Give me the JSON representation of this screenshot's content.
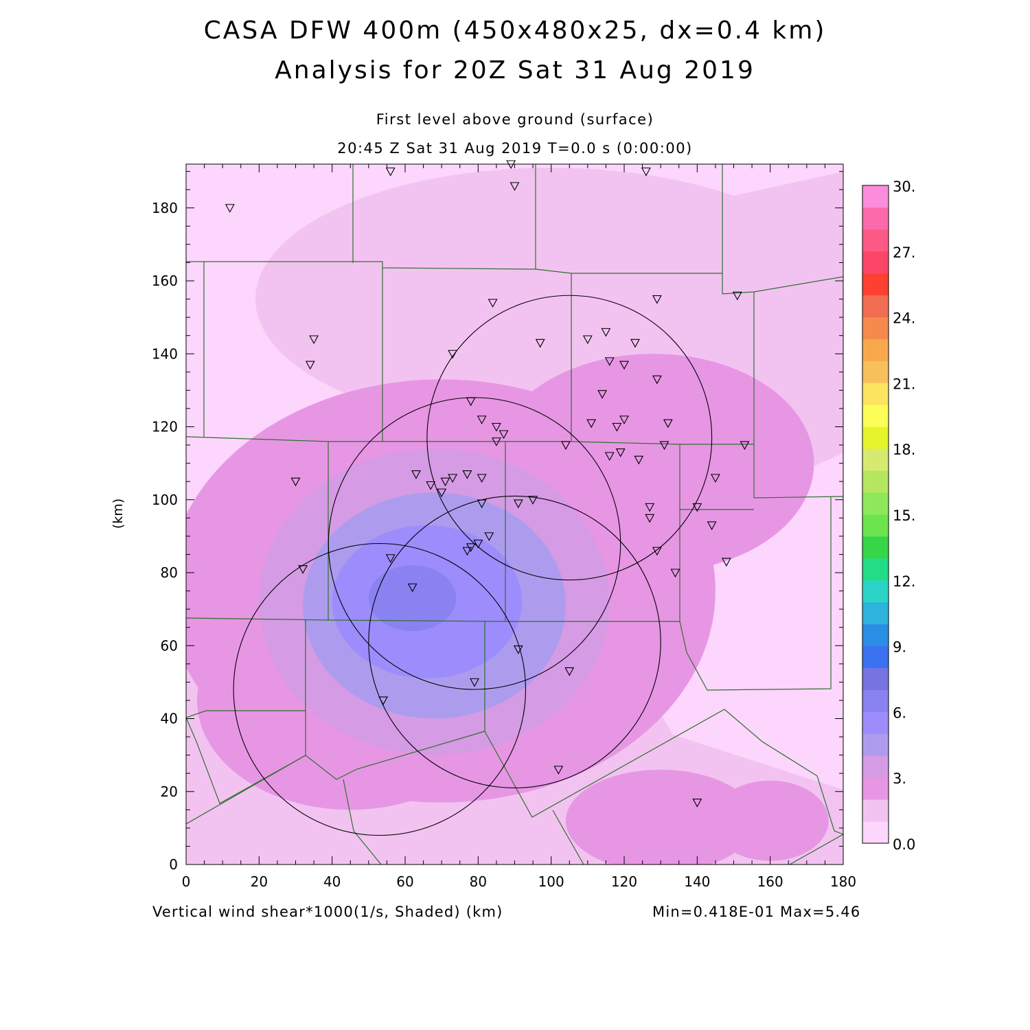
{
  "header": {
    "title_line1": "CASA DFW 400m (450x480x25, dx=0.4 km)",
    "title_line2": "Analysis for 20Z Sat 31 Aug 2019",
    "subtitle_line1": "First level above ground (surface)",
    "subtitle_line2": "20:45 Z Sat 31 Aug 2019    T=0.0 s (0:00:00)"
  },
  "footer": {
    "field_label": "Vertical wind shear*1000(1/s, Shaded)  (km)",
    "minmax": "Min=0.418E-01 Max=5.46"
  },
  "colors": {
    "bg": "#ffffff",
    "levels": [
      "#fcd6fc",
      "#f2c3f0",
      "#e796e4",
      "#d59be4",
      "#ad9cee",
      "#9d8cfc",
      "#8a82f0",
      "#7774e2",
      "#3b72f2",
      "#2a8ee4",
      "#2cb4dc",
      "#2cd4c8",
      "#22dc86",
      "#36d648",
      "#6ce44e",
      "#8fe85a",
      "#b5e660",
      "#d6ea72",
      "#e6f42c",
      "#fdfd58",
      "#fce460",
      "#f8c05a",
      "#f8a84c",
      "#f58a4c",
      "#f26e52",
      "#fe4030",
      "#fc4668",
      "#fc5a84",
      "#fc6aac",
      "#fc8cdc"
    ],
    "boundary": "#2f6e2f",
    "ring": "#000000"
  },
  "chart_data": {
    "type": "heatmap",
    "field": "Vertical wind shear*1000 (1/s)",
    "xlabel": "",
    "ylabel": "(km)",
    "xlim": [
      0,
      180
    ],
    "ylim": [
      0,
      192
    ],
    "x_ticks": [
      0,
      20,
      40,
      60,
      80,
      100,
      120,
      140,
      160,
      180
    ],
    "y_ticks": [
      0,
      20,
      40,
      60,
      80,
      100,
      120,
      140,
      160,
      180
    ],
    "colorbar": {
      "min": 0.0,
      "max": 30.0,
      "interval": 1.0,
      "labels": [
        "0.0",
        "3.",
        "6.",
        "9.",
        "12.",
        "15.",
        "18.",
        "21.",
        "24.",
        "27.",
        "30."
      ]
    },
    "data_min": 0.0418,
    "data_max": 5.46,
    "shading_blobs": [
      {
        "x": 70,
        "y": 75,
        "rx": 75,
        "ry": 58,
        "level": 2
      },
      {
        "x": 45,
        "y": 45,
        "rx": 42,
        "ry": 30,
        "level": 2
      },
      {
        "x": 128,
        "y": 110,
        "rx": 44,
        "ry": 30,
        "level": 2
      },
      {
        "x": 130,
        "y": 12,
        "rx": 26,
        "ry": 14,
        "level": 2
      },
      {
        "x": 160,
        "y": 12,
        "rx": 16,
        "ry": 11,
        "level": 2
      },
      {
        "x": 68,
        "y": 72,
        "rx": 48,
        "ry": 42,
        "level": 3
      },
      {
        "x": 68,
        "y": 71,
        "rx": 36,
        "ry": 31,
        "level": 4
      },
      {
        "x": 66,
        "y": 72,
        "rx": 26,
        "ry": 21,
        "level": 5
      },
      {
        "x": 62,
        "y": 73,
        "rx": 12,
        "ry": 9,
        "level": 6
      }
    ],
    "radar_rings": [
      {
        "x": 105,
        "y": 117,
        "r": 39
      },
      {
        "x": 79,
        "y": 88,
        "r": 40
      },
      {
        "x": 90,
        "y": 61,
        "r": 40
      },
      {
        "x": 53,
        "y": 48,
        "r": 40
      }
    ],
    "station_markers": [
      [
        12,
        180
      ],
      [
        56,
        190
      ],
      [
        89,
        192
      ],
      [
        90,
        186
      ],
      [
        126,
        190
      ],
      [
        35,
        144
      ],
      [
        34,
        137
      ],
      [
        73,
        140
      ],
      [
        84,
        154
      ],
      [
        97,
        143
      ],
      [
        129,
        155
      ],
      [
        151,
        156
      ],
      [
        110,
        144
      ],
      [
        115,
        146
      ],
      [
        123,
        143
      ],
      [
        116,
        138
      ],
      [
        120,
        137
      ],
      [
        129,
        133
      ],
      [
        114,
        129
      ],
      [
        78,
        127
      ],
      [
        81,
        122
      ],
      [
        85,
        120
      ],
      [
        87,
        118
      ],
      [
        85,
        116
      ],
      [
        111,
        121
      ],
      [
        120,
        122
      ],
      [
        118,
        120
      ],
      [
        132,
        121
      ],
      [
        131,
        115
      ],
      [
        104,
        115
      ],
      [
        153,
        115
      ],
      [
        116,
        112
      ],
      [
        119,
        113
      ],
      [
        124,
        111
      ],
      [
        63,
        107
      ],
      [
        67,
        104
      ],
      [
        70,
        102
      ],
      [
        71,
        105
      ],
      [
        73,
        106
      ],
      [
        77,
        107
      ],
      [
        81,
        106
      ],
      [
        30,
        105
      ],
      [
        145,
        106
      ],
      [
        81,
        99
      ],
      [
        91,
        99
      ],
      [
        95,
        100
      ],
      [
        127,
        98
      ],
      [
        140,
        98
      ],
      [
        127,
        95
      ],
      [
        144,
        93
      ],
      [
        83,
        90
      ],
      [
        80,
        88
      ],
      [
        78,
        87
      ],
      [
        77,
        86
      ],
      [
        129,
        86
      ],
      [
        148,
        83
      ],
      [
        134,
        80
      ],
      [
        56,
        84
      ],
      [
        32,
        81
      ],
      [
        62,
        76
      ],
      [
        91,
        59
      ],
      [
        105,
        53
      ],
      [
        79,
        50
      ],
      [
        54,
        45
      ],
      [
        102,
        26
      ],
      [
        140,
        17
      ]
    ]
  }
}
